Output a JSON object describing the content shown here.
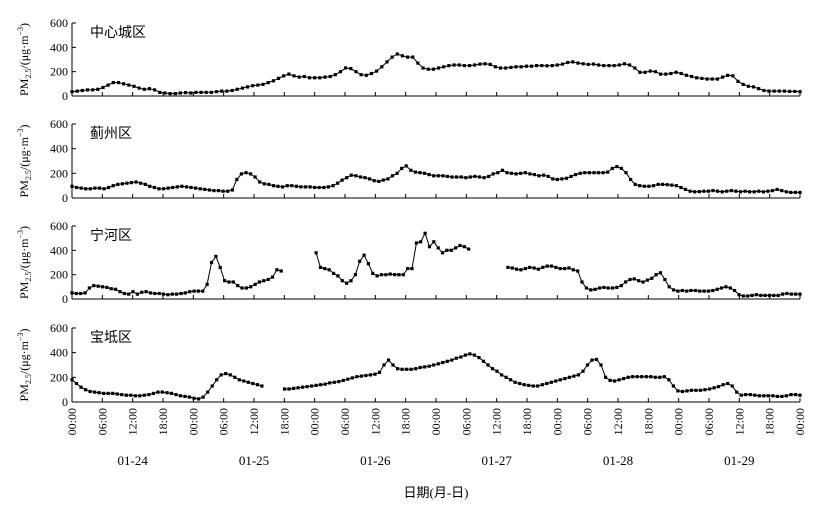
{
  "chart_data": [
    {
      "type": "line",
      "panel_label": "中心城区",
      "ylabel_main": "PM",
      "ylabel_sub": "2.5",
      "ylabel_rest": "/(μg·m",
      "ylabel_sup": "−3",
      "ylabel_close": ")",
      "ylim": [
        0,
        600
      ],
      "yticks": [
        0,
        200,
        400,
        600
      ],
      "values": [
        35,
        40,
        45,
        50,
        50,
        55,
        70,
        90,
        110,
        110,
        100,
        90,
        80,
        65,
        55,
        60,
        50,
        30,
        25,
        20,
        20,
        25,
        28,
        25,
        30,
        30,
        30,
        30,
        35,
        40,
        40,
        45,
        55,
        65,
        75,
        85,
        90,
        95,
        110,
        125,
        145,
        165,
        180,
        165,
        155,
        160,
        150,
        150,
        150,
        155,
        160,
        175,
        200,
        230,
        225,
        200,
        175,
        170,
        185,
        205,
        240,
        280,
        320,
        345,
        330,
        320,
        320,
        270,
        230,
        220,
        220,
        230,
        240,
        250,
        255,
        255,
        250,
        250,
        255,
        262,
        265,
        260,
        240,
        230,
        230,
        235,
        240,
        240,
        245,
        245,
        250,
        250,
        248,
        250,
        255,
        262,
        275,
        280,
        270,
        265,
        260,
        262,
        255,
        250,
        250,
        250,
        255,
        265,
        255,
        230,
        195,
        195,
        205,
        200,
        180,
        180,
        185,
        195,
        185,
        170,
        160,
        150,
        145,
        140,
        140,
        140,
        155,
        170,
        165,
        120,
        95,
        80,
        75,
        60,
        45,
        40,
        40,
        40,
        40,
        38,
        38,
        35
      ]
    },
    {
      "type": "line",
      "panel_label": "蓟州区",
      "ylabel_main": "PM",
      "ylabel_sub": "2.5",
      "ylabel_rest": "/(μg·m",
      "ylabel_sup": "−3",
      "ylabel_close": ")",
      "ylim": [
        0,
        600
      ],
      "yticks": [
        0,
        200,
        400,
        600
      ],
      "values": [
        95,
        85,
        80,
        75,
        75,
        80,
        80,
        75,
        85,
        100,
        110,
        115,
        120,
        125,
        130,
        120,
        110,
        95,
        85,
        75,
        75,
        80,
        85,
        90,
        95,
        90,
        85,
        80,
        75,
        70,
        65,
        60,
        60,
        55,
        55,
        65,
        150,
        195,
        205,
        195,
        170,
        130,
        115,
        110,
        100,
        95,
        90,
        100,
        100,
        95,
        90,
        90,
        90,
        85,
        85,
        85,
        90,
        100,
        120,
        145,
        165,
        185,
        180,
        170,
        165,
        155,
        140,
        135,
        145,
        155,
        180,
        200,
        240,
        260,
        225,
        210,
        205,
        200,
        190,
        180,
        180,
        180,
        175,
        170,
        170,
        170,
        165,
        170,
        175,
        170,
        165,
        175,
        195,
        205,
        225,
        205,
        200,
        195,
        200,
        205,
        195,
        190,
        180,
        185,
        175,
        155,
        150,
        155,
        160,
        175,
        190,
        200,
        205,
        205,
        205,
        205,
        205,
        210,
        240,
        255,
        240,
        205,
        150,
        110,
        100,
        95,
        95,
        100,
        110,
        110,
        108,
        105,
        100,
        85,
        70,
        55,
        50,
        52,
        55,
        55,
        60,
        55,
        50,
        55,
        60,
        55,
        50,
        55,
        50,
        50,
        55,
        50,
        55,
        60,
        70,
        60,
        50,
        45,
        45,
        45
      ]
    },
    {
      "type": "line",
      "panel_label": "宁河区",
      "ylabel_main": "PM",
      "ylabel_sub": "2.5",
      "ylabel_rest": "/(μg·m",
      "ylabel_sup": "−3",
      "ylabel_close": ")",
      "ylim": [
        0,
        600
      ],
      "yticks": [
        0,
        200,
        400,
        600
      ],
      "values": [
        50,
        45,
        45,
        50,
        90,
        110,
        105,
        100,
        95,
        85,
        80,
        60,
        45,
        40,
        60,
        40,
        55,
        60,
        50,
        45,
        45,
        40,
        35,
        40,
        40,
        45,
        50,
        60,
        65,
        65,
        65,
        120,
        300,
        350,
        260,
        150,
        140,
        140,
        110,
        90,
        90,
        100,
        120,
        140,
        150,
        160,
        180,
        240,
        230,
        null,
        null,
        null,
        null,
        null,
        null,
        null,
        380,
        260,
        250,
        240,
        210,
        190,
        150,
        130,
        150,
        200,
        310,
        360,
        290,
        210,
        190,
        200,
        200,
        205,
        200,
        200,
        200,
        250,
        250,
        460,
        470,
        540,
        430,
        470,
        420,
        380,
        400,
        400,
        420,
        440,
        430,
        410,
        null,
        null,
        null,
        null,
        null,
        null,
        null,
        null,
        260,
        255,
        245,
        240,
        250,
        260,
        255,
        245,
        260,
        270,
        270,
        260,
        250,
        250,
        255,
        240,
        230,
        140,
        90,
        75,
        80,
        90,
        95,
        90,
        90,
        95,
        110,
        140,
        160,
        165,
        150,
        140,
        155,
        170,
        200,
        215,
        160,
        100,
        75,
        65,
        70,
        65,
        70,
        70,
        65,
        65,
        65,
        70,
        80,
        90,
        100,
        90,
        70,
        35,
        25,
        25,
        30,
        35,
        30,
        30,
        30,
        30,
        30,
        40,
        45,
        40,
        40,
        40
      ]
    },
    {
      "type": "line",
      "panel_label": "宝坻区",
      "ylabel_main": "PM",
      "ylabel_sub": "2.5",
      "ylabel_rest": "/(μg·m",
      "ylabel_sup": "−3",
      "ylabel_close": ")",
      "ylim": [
        0,
        600
      ],
      "yticks": [
        0,
        200,
        400,
        600
      ],
      "xticks": [
        "00:00",
        "06:00",
        "12:00",
        "18:00",
        "00:00",
        "06:00",
        "12:00",
        "18:00",
        "00:00",
        "06:00",
        "12:00",
        "18:00",
        "00:00",
        "06:00",
        "12:00",
        "18:00",
        "00:00",
        "06:00",
        "12:00",
        "18:00",
        "00:00",
        "06:00",
        "12:00",
        "18:00",
        "00:00"
      ],
      "date_labels": [
        "01-24",
        "01-25",
        "01-26",
        "01-27",
        "01-28",
        "01-29"
      ],
      "xlabel": "日期(月-日)",
      "values": [
        180,
        150,
        120,
        100,
        85,
        80,
        75,
        70,
        70,
        70,
        65,
        60,
        55,
        55,
        50,
        50,
        55,
        60,
        70,
        80,
        80,
        75,
        70,
        60,
        50,
        45,
        40,
        30,
        25,
        40,
        80,
        130,
        180,
        220,
        230,
        220,
        200,
        180,
        170,
        160,
        150,
        140,
        130,
        null,
        null,
        null,
        null,
        105,
        105,
        110,
        115,
        120,
        125,
        130,
        135,
        140,
        145,
        155,
        160,
        165,
        175,
        185,
        195,
        205,
        210,
        215,
        220,
        225,
        240,
        300,
        340,
        300,
        270,
        265,
        265,
        265,
        270,
        280,
        285,
        290,
        300,
        310,
        320,
        330,
        340,
        355,
        365,
        380,
        390,
        380,
        360,
        330,
        300,
        270,
        250,
        220,
        200,
        180,
        160,
        150,
        140,
        135,
        130,
        130,
        140,
        150,
        160,
        170,
        180,
        190,
        200,
        210,
        220,
        250,
        300,
        340,
        345,
        300,
        200,
        175,
        170,
        180,
        190,
        200,
        205,
        205,
        205,
        205,
        205,
        200,
        200,
        205,
        180,
        130,
        90,
        85,
        90,
        95,
        95,
        95,
        100,
        105,
        115,
        125,
        140,
        150,
        130,
        80,
        55,
        60,
        60,
        55,
        50,
        50,
        50,
        50,
        45,
        45,
        50,
        60,
        60,
        55
      ]
    }
  ]
}
